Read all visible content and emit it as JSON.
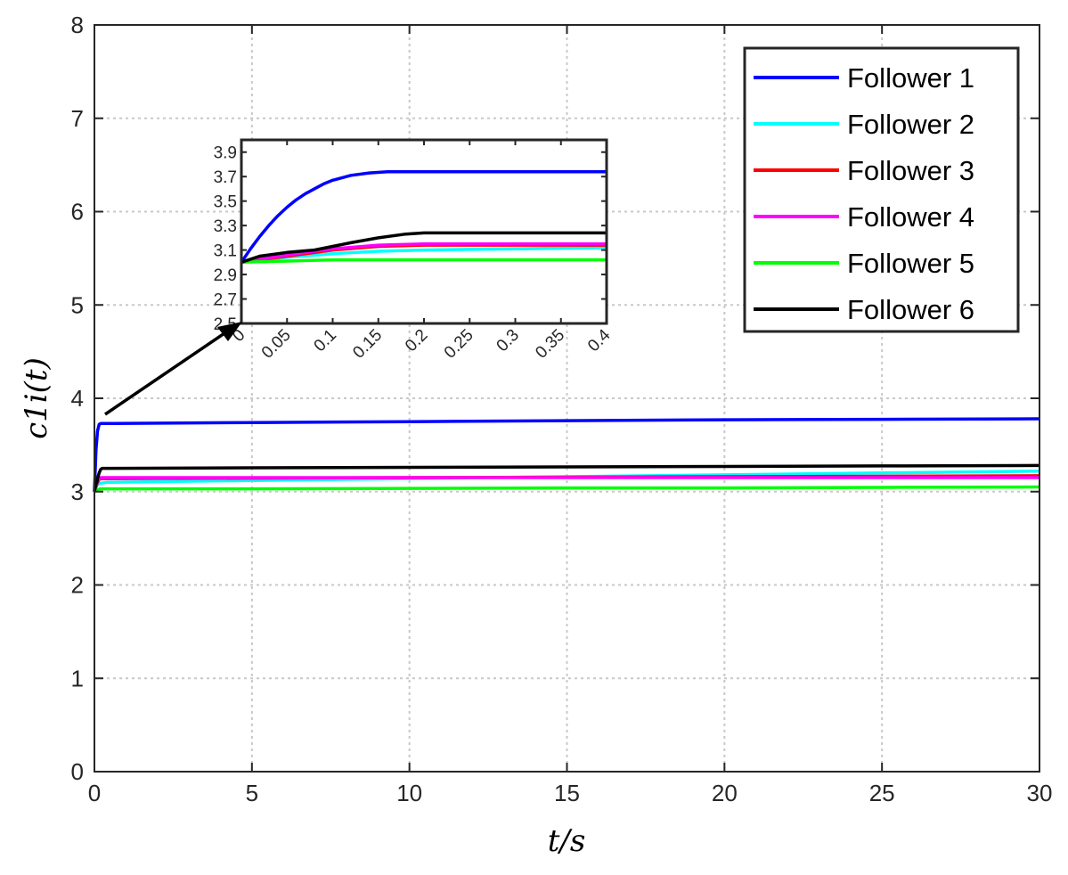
{
  "chart_data": [
    {
      "type": "line",
      "title": "",
      "xlabel": "t/s",
      "ylabel": "c1i(t)",
      "xlim": [
        0,
        30
      ],
      "ylim": [
        0,
        8
      ],
      "xticks": [
        "0",
        "5",
        "10",
        "15",
        "20",
        "25",
        "30"
      ],
      "yticks": [
        "0",
        "1",
        "2",
        "3",
        "4",
        "5",
        "6",
        "7",
        "8"
      ],
      "grid": true,
      "legend_position": "top-right",
      "series": [
        {
          "name": "Follower 1",
          "color": "#0000ff",
          "x": [
            0,
            0.05,
            0.1,
            0.15,
            0.2,
            0.3,
            0.4,
            5,
            10,
            15,
            20,
            25,
            30
          ],
          "y": [
            3.0,
            3.45,
            3.65,
            3.72,
            3.73,
            3.73,
            3.73,
            3.74,
            3.75,
            3.76,
            3.77,
            3.775,
            3.78
          ]
        },
        {
          "name": "Follower 2",
          "color": "#00ffff",
          "x": [
            0,
            0.05,
            0.1,
            0.2,
            0.4,
            5,
            10,
            15,
            20,
            25,
            30
          ],
          "y": [
            3.0,
            3.05,
            3.08,
            3.09,
            3.1,
            3.12,
            3.14,
            3.16,
            3.18,
            3.2,
            3.22
          ]
        },
        {
          "name": "Follower 3",
          "color": "#ff0000",
          "x": [
            0,
            0.05,
            0.1,
            0.15,
            0.2,
            0.4,
            5,
            10,
            15,
            20,
            25,
            30
          ],
          "y": [
            3.0,
            3.05,
            3.1,
            3.13,
            3.14,
            3.14,
            3.145,
            3.15,
            3.155,
            3.16,
            3.165,
            3.17
          ]
        },
        {
          "name": "Follower 4",
          "color": "#ff00ff",
          "x": [
            0,
            0.05,
            0.1,
            0.15,
            0.2,
            0.4,
            5,
            10,
            15,
            20,
            25,
            30
          ],
          "y": [
            3.0,
            3.06,
            3.11,
            3.14,
            3.15,
            3.15,
            3.15,
            3.15,
            3.15,
            3.15,
            3.15,
            3.15
          ]
        },
        {
          "name": "Follower 5",
          "color": "#00ff00",
          "x": [
            0,
            0.05,
            0.1,
            0.2,
            0.4,
            5,
            10,
            15,
            20,
            25,
            30
          ],
          "y": [
            3.0,
            3.01,
            3.02,
            3.03,
            3.03,
            3.03,
            3.035,
            3.04,
            3.04,
            3.045,
            3.05
          ]
        },
        {
          "name": "Follower 6",
          "color": "#000000",
          "x": [
            0,
            0.05,
            0.08,
            0.1,
            0.15,
            0.2,
            0.25,
            0.4,
            5,
            10,
            15,
            20,
            25,
            30
          ],
          "y": [
            3.0,
            3.08,
            3.1,
            3.14,
            3.2,
            3.24,
            3.25,
            3.25,
            3.255,
            3.26,
            3.265,
            3.27,
            3.275,
            3.28
          ]
        }
      ]
    },
    {
      "type": "line",
      "title": "",
      "xlabel": "",
      "ylabel": "",
      "xlim": [
        0,
        0.4
      ],
      "ylim": [
        2.5,
        4.0
      ],
      "xticks": [
        "0",
        "0.05",
        "0.1",
        "0.15",
        "0.2",
        "0.25",
        "0.3",
        "0.35",
        "0.4"
      ],
      "yticks": [
        "2.5",
        "2.7",
        "2.9",
        "3.1",
        "3.3",
        "3.5",
        "3.7",
        "3.9"
      ],
      "grid": false,
      "series": [
        {
          "color": "#0000ff",
          "x": [
            0,
            0.01,
            0.02,
            0.03,
            0.04,
            0.05,
            0.06,
            0.07,
            0.08,
            0.09,
            0.1,
            0.12,
            0.14,
            0.16,
            0.2,
            0.3,
            0.4
          ],
          "y": [
            3.0,
            3.11,
            3.21,
            3.3,
            3.38,
            3.45,
            3.51,
            3.56,
            3.6,
            3.64,
            3.67,
            3.71,
            3.73,
            3.74,
            3.74,
            3.74,
            3.74
          ]
        },
        {
          "color": "#00ffff",
          "x": [
            0,
            0.05,
            0.1,
            0.15,
            0.2,
            0.3,
            0.4
          ],
          "y": [
            3.0,
            3.04,
            3.07,
            3.09,
            3.1,
            3.11,
            3.12
          ]
        },
        {
          "color": "#ff0000",
          "x": [
            0,
            0.05,
            0.1,
            0.15,
            0.2,
            0.3,
            0.4
          ],
          "y": [
            3.0,
            3.05,
            3.1,
            3.13,
            3.14,
            3.14,
            3.14
          ]
        },
        {
          "color": "#ff00ff",
          "x": [
            0,
            0.05,
            0.1,
            0.15,
            0.2,
            0.3,
            0.4
          ],
          "y": [
            3.0,
            3.06,
            3.11,
            3.14,
            3.15,
            3.15,
            3.15
          ]
        },
        {
          "color": "#00ff00",
          "x": [
            0,
            0.05,
            0.1,
            0.2,
            0.3,
            0.4
          ],
          "y": [
            3.0,
            3.01,
            3.02,
            3.02,
            3.02,
            3.02
          ]
        },
        {
          "color": "#000000",
          "x": [
            0,
            0.02,
            0.05,
            0.08,
            0.1,
            0.12,
            0.15,
            0.18,
            0.2,
            0.25,
            0.3,
            0.4
          ],
          "y": [
            3.0,
            3.05,
            3.08,
            3.1,
            3.13,
            3.16,
            3.2,
            3.23,
            3.24,
            3.24,
            3.24,
            3.24
          ]
        }
      ]
    }
  ]
}
